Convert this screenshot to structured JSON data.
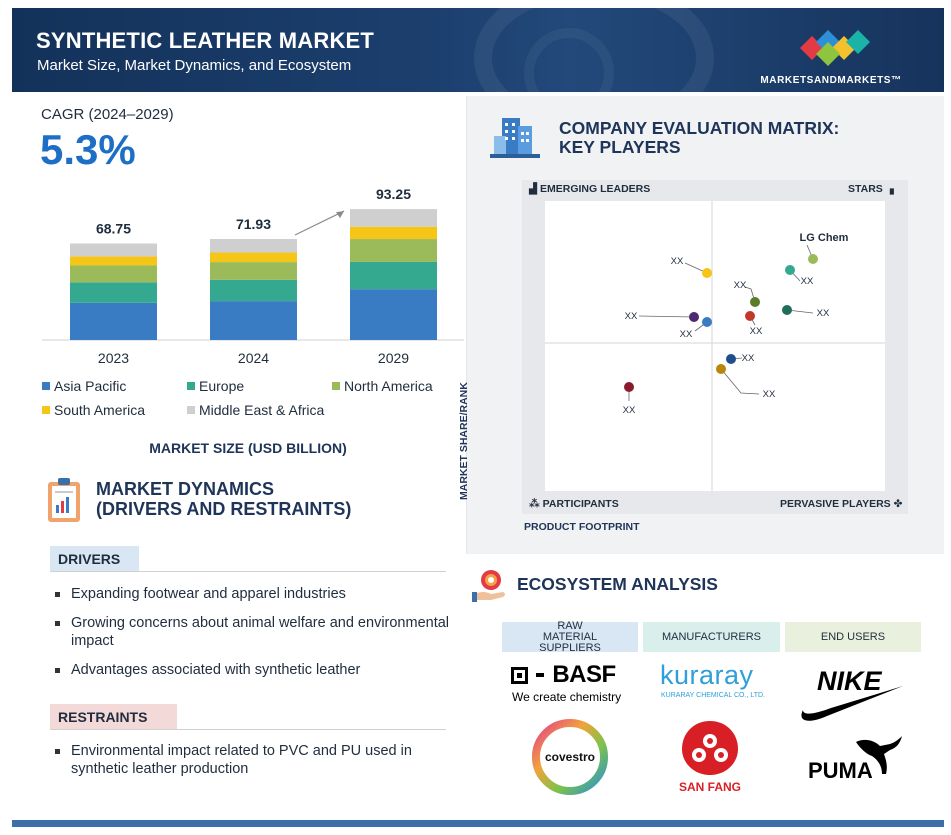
{
  "header": {
    "title": "SYNTHETIC LEATHER MARKET",
    "subtitle": "Market Size, Market Dynamics, and Ecosystem",
    "logo_text": "MARKETSANDMARKETS™"
  },
  "cagr": {
    "label": "CAGR (2024–2029)",
    "value": "5.3%"
  },
  "chart_data": {
    "type": "bar",
    "stacked": true,
    "categories": [
      "2023",
      "2024",
      "2029"
    ],
    "totals": [
      "68.75",
      "71.93",
      "93.25"
    ],
    "series": [
      {
        "name": "Asia Pacific",
        "color": "#3a7cc4",
        "values": [
          26.5,
          27.7,
          36.2
        ]
      },
      {
        "name": "Europe",
        "color": "#34a990",
        "values": [
          14.6,
          15.2,
          19.4
        ]
      },
      {
        "name": "North America",
        "color": "#9bbb5a",
        "values": [
          12.0,
          12.6,
          16.3
        ]
      },
      {
        "name": "South America",
        "color": "#f5c518",
        "values": [
          6.5,
          6.8,
          8.8
        ]
      },
      {
        "name": "Middle East & Africa",
        "color": "#cfcfcf",
        "values": [
          9.15,
          9.63,
          12.55
        ]
      }
    ],
    "title": "MARKET SIZE (USD BILLION)",
    "ylim": [
      0,
      100
    ]
  },
  "dynamics": {
    "title_line1": "MARKET DYNAMICS",
    "title_line2": "(DRIVERS AND RESTRAINTS)",
    "drivers_label": "DRIVERS",
    "drivers": [
      "Expanding footwear and apparel industries",
      "Growing concerns about animal welfare and environmental impact",
      "Advantages associated with synthetic leather"
    ],
    "restraints_label": "RESTRAINTS",
    "restraints": [
      "Environmental impact related to PVC and PU used in synthetic leather production"
    ]
  },
  "matrix": {
    "title_line1": "COMPANY EVALUATION MATRIX:",
    "title_line2": "KEY PLAYERS",
    "q_top_left": "EMERGING LEADERS",
    "q_top_right": "STARS",
    "q_bottom_left": "PARTICIPANTS",
    "q_bottom_right": "PERVASIVE PLAYERS",
    "y_axis": "MARKET SHARE/RANK",
    "x_axis": "PRODUCT FOOTPRINT",
    "points": [
      {
        "label": "LG Chem",
        "color": "#9bbb5a"
      },
      {
        "label": "XX",
        "color": "#f5c518"
      },
      {
        "label": "XX",
        "color": "#34a990"
      },
      {
        "label": "XX",
        "color": "#5a7d2a"
      },
      {
        "label": "XX",
        "color": "#1f6e5c"
      },
      {
        "label": "XX",
        "color": "#4b2a6e"
      },
      {
        "label": "XX",
        "color": "#3a7cc4"
      },
      {
        "label": "XX",
        "color": "#c0392b"
      },
      {
        "label": "XX",
        "color": "#1e4f8c"
      },
      {
        "label": "XX",
        "color": "#b8860b"
      },
      {
        "label": "XX",
        "color": "#8b1a2b"
      }
    ]
  },
  "ecosystem": {
    "title": "ECOSYSTEM ANALYSIS",
    "headers": [
      "RAW MATERIAL SUPPLIERS",
      "MANUFACTURERS",
      "END USERS"
    ],
    "basf_name": "BASF",
    "basf_tagline": "We create chemistry",
    "kuraray_name": "kuraray",
    "kuraray_sub": "KURARAY CHEMICAL CO., LTD.",
    "covestro_name": "covestro",
    "sanfang_name": "SAN FANG",
    "puma_name": "PUMA"
  }
}
